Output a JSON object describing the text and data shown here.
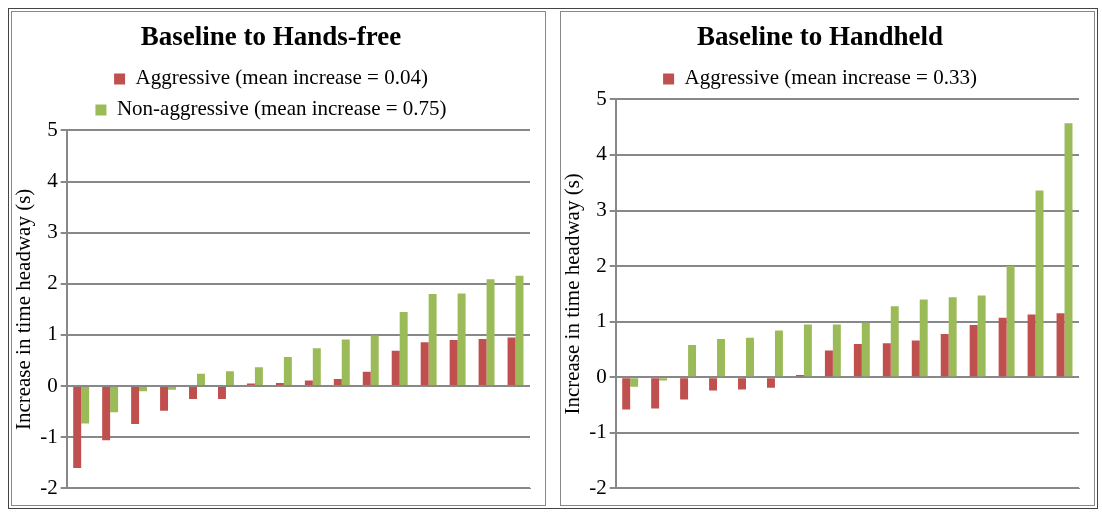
{
  "chart_data": [
    {
      "type": "bar",
      "title": "Baseline to Hands-free",
      "ylabel": "Increase in time headway (s)",
      "categories": [
        null,
        null,
        null,
        null,
        null,
        null,
        null,
        null,
        null,
        null,
        null,
        null,
        null,
        null,
        null,
        null
      ],
      "series": [
        {
          "name": "Aggressive (mean increase = 0.04)",
          "color": "#c0504d",
          "values": [
            -1.6,
            -1.06,
            -0.74,
            -0.48,
            -0.25,
            -0.25,
            0.05,
            0.06,
            0.11,
            0.14,
            0.28,
            0.69,
            0.86,
            0.9,
            0.92,
            0.95
          ]
        },
        {
          "name": "Non-aggressive (mean increase = 0.75)",
          "color": "#9bbb59",
          "values": [
            -0.73,
            -0.51,
            -0.1,
            -0.07,
            0.24,
            0.29,
            0.37,
            0.57,
            0.74,
            0.91,
            0.99,
            1.45,
            1.8,
            1.81,
            2.09,
            2.16
          ]
        }
      ],
      "ylim": [
        -2,
        5
      ],
      "yticks": [
        -2,
        -1,
        0,
        1,
        2,
        3,
        4,
        5
      ],
      "grid": "y",
      "legend": "top",
      "tick_labels": "y"
    },
    {
      "type": "bar",
      "title": "Baseline to Handheld",
      "ylabel": "Increase in time headway (s)",
      "categories": [
        null,
        null,
        null,
        null,
        null,
        null,
        null,
        null,
        null,
        null,
        null,
        null,
        null,
        null,
        null,
        null
      ],
      "series": [
        {
          "name": "Aggressive (mean increase = 0.33)",
          "color": "#c0504d",
          "values": [
            -0.58,
            -0.56,
            -0.4,
            -0.24,
            -0.22,
            -0.19,
            0.04,
            0.48,
            0.6,
            0.61,
            0.66,
            0.78,
            0.94,
            1.07,
            1.13,
            1.15
          ]
        },
        {
          "color": "#9bbb59",
          "values": [
            -0.17,
            -0.06,
            0.58,
            0.69,
            0.71,
            0.84,
            0.95,
            0.95,
            0.98,
            1.28,
            1.4,
            1.44,
            1.47,
            2.0,
            3.36,
            4.57
          ]
        }
      ],
      "ylim": [
        -2,
        5
      ],
      "yticks": [
        -2,
        -1,
        0,
        1,
        2,
        3,
        4,
        5
      ],
      "grid": "y",
      "legend": "top",
      "tick_labels": "y"
    }
  ]
}
